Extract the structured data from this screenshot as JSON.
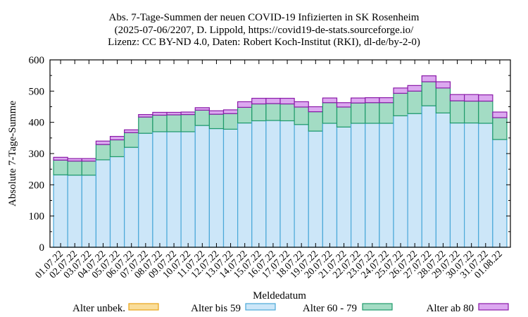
{
  "chart_data": {
    "type": "bar",
    "stacked": true,
    "title": [
      "Abs. 7-Tage-Summen der neuen COVID-19 Infizierten in SK Rosenheim",
      "(2025-07-06/2207, D. Lippold, https://covid19-de-stats.sourceforge.io/",
      "Lizenz: CC BY-ND 4.0, Daten: Robert Koch-Institut (RKI), dl-de/by-2-0)"
    ],
    "xlabel": "Meldedatum",
    "ylabel": "Absolute 7-Tage-Summe",
    "ylim": [
      0,
      600
    ],
    "yticks": [
      0,
      100,
      200,
      300,
      400,
      500,
      600
    ],
    "grid": false,
    "legend_position": "bottom",
    "categories": [
      "01.07.22",
      "02.07.22",
      "03.07.22",
      "04.07.22",
      "05.07.22",
      "06.07.22",
      "07.07.22",
      "08.07.22",
      "09.07.22",
      "10.07.22",
      "11.07.22",
      "12.07.22",
      "13.07.22",
      "14.07.22",
      "15.07.22",
      "16.07.22",
      "17.07.22",
      "18.07.22",
      "19.07.22",
      "20.07.22",
      "21.07.22",
      "22.07.22",
      "23.07.22",
      "24.07.22",
      "25.07.22",
      "26.07.22",
      "27.07.22",
      "28.07.22",
      "29.07.22",
      "30.07.22",
      "31.07.22",
      "01.08.22"
    ],
    "series": [
      {
        "name": "Alter unbek.",
        "color": "#f9dd9a",
        "stroke": "#e8a317",
        "values": [
          0,
          0,
          0,
          0,
          0,
          0,
          0,
          0,
          0,
          0,
          0,
          0,
          0,
          0,
          0,
          0,
          0,
          0,
          0,
          0,
          0,
          0,
          0,
          0,
          0,
          0,
          0,
          0,
          0,
          0,
          0,
          0
        ]
      },
      {
        "name": "Alter bis 59",
        "color": "#cce6f8",
        "stroke": "#4aa8d8",
        "values": [
          232,
          231,
          231,
          280,
          290,
          320,
          365,
          370,
          370,
          370,
          390,
          380,
          378,
          398,
          405,
          406,
          405,
          393,
          372,
          397,
          385,
          397,
          397,
          397,
          421,
          428,
          453,
          430,
          398,
          398,
          397,
          345
        ]
      },
      {
        "name": "Alter 60 - 79",
        "color": "#a3dcc4",
        "stroke": "#1e9a6a",
        "values": [
          47,
          45,
          45,
          49,
          54,
          47,
          52,
          53,
          54,
          55,
          49,
          46,
          50,
          50,
          54,
          54,
          54,
          56,
          62,
          66,
          64,
          65,
          66,
          66,
          72,
          72,
          77,
          80,
          71,
          70,
          71,
          70
        ]
      },
      {
        "name": "Alter ab 80",
        "color": "#dca8f0",
        "stroke": "#8a1aa8",
        "values": [
          9,
          8,
          8,
          11,
          11,
          9,
          8,
          9,
          8,
          8,
          8,
          11,
          12,
          18,
          18,
          17,
          18,
          17,
          16,
          15,
          14,
          16,
          16,
          16,
          17,
          18,
          19,
          20,
          20,
          21,
          20,
          18
        ]
      }
    ]
  }
}
